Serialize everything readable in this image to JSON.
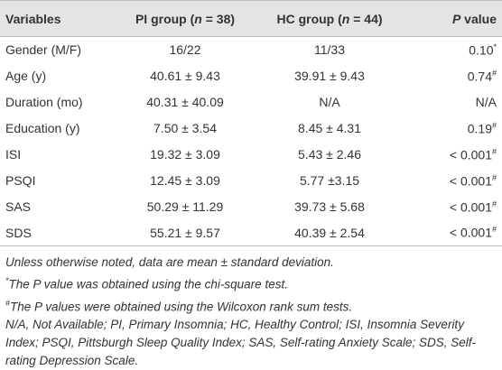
{
  "table": {
    "header": [
      [
        "Variables"
      ],
      [
        "PI group (",
        "n",
        " = 38)"
      ],
      [
        "HC group (",
        "n",
        " = 44)"
      ],
      [
        "P",
        " value"
      ]
    ],
    "rows": [
      [
        "Gender (M/F)",
        "16/22",
        "11/33",
        "0.10",
        "*"
      ],
      [
        "Age (y)",
        "40.61 ± 9.43",
        "39.91 ± 9.43",
        "0.74",
        "#"
      ],
      [
        "Duration (mo)",
        "40.31 ± 40.09",
        "N/A",
        "N/A"
      ],
      [
        "Education (y)",
        "7.50 ± 3.54",
        "8.45 ± 4.31",
        "0.19",
        "#"
      ],
      [
        "ISI",
        "19.32 ± 3.09",
        "5.43 ± 2.46",
        "< 0.001",
        "#"
      ],
      [
        "PSQI",
        "12.45 ± 3.09",
        "5.77 ±3.15",
        "< 0.001",
        "#"
      ],
      [
        "SAS",
        "50.29 ± 11.29",
        "39.73 ± 5.68",
        "< 0.001",
        "#"
      ],
      [
        "SDS",
        "55.21 ± 9.57",
        "40.39 ± 2.54",
        "< 0.001",
        "#"
      ]
    ]
  },
  "notes": {
    "summary": "Unless otherwise noted, data are mean ± standard deviation.",
    "star": {
      "mark": "*",
      "text": "The P value was obtained using the chi-square test."
    },
    "hash": {
      "mark": "#",
      "text": "The P values were obtained using the Wilcoxon rank sum tests."
    },
    "abbreviations": "N/A, Not Available; PI, Primary Insomnia; HC, Healthy Control; ISI, Insomnia Severity Index; PSQI, Pittsburgh Sleep Quality Index; SAS, Self-rating Anxiety Scale; SDS, Self-rating Depression Scale."
  }
}
